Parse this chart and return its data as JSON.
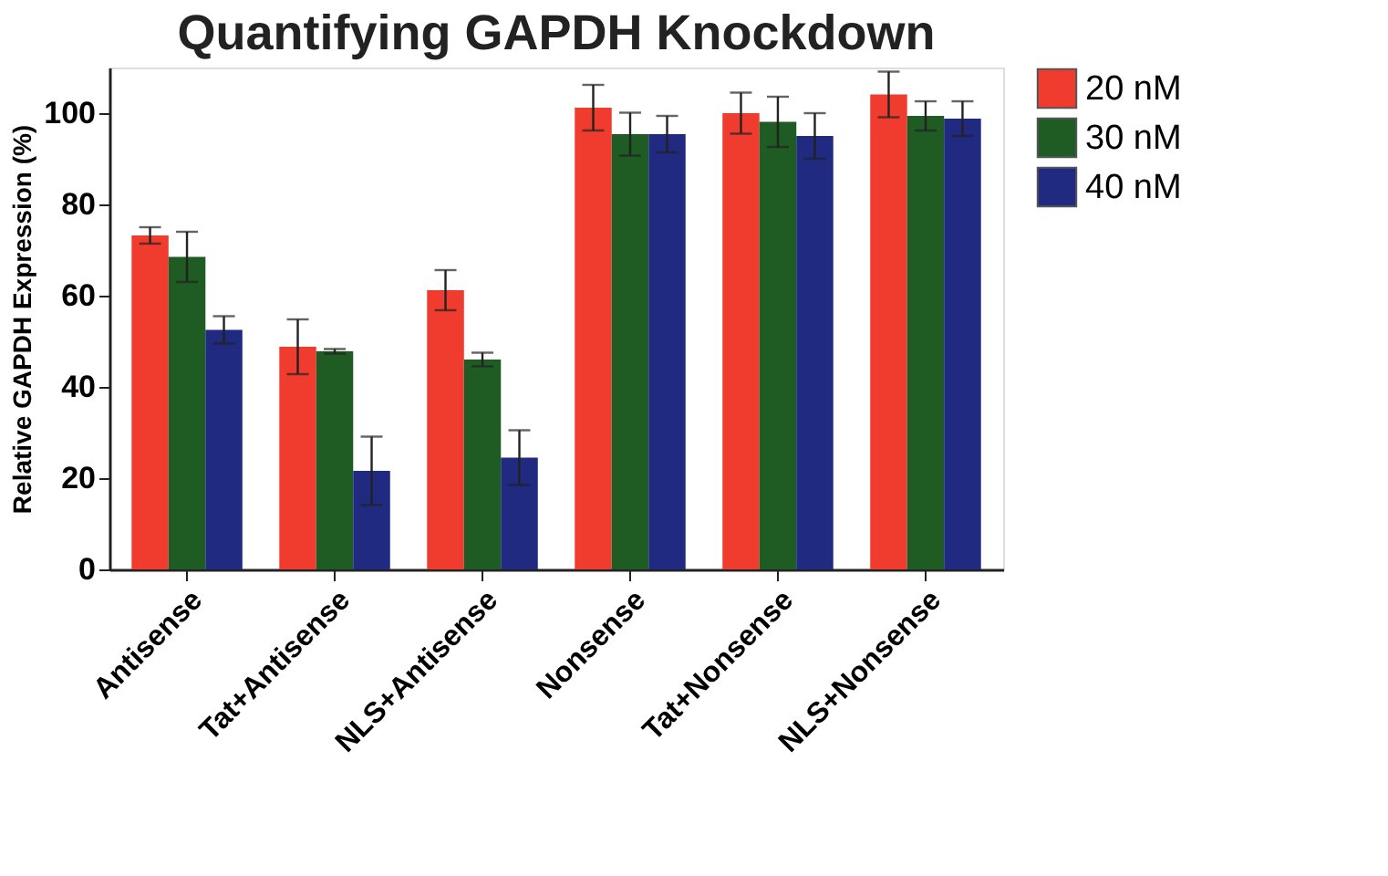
{
  "chart_data": {
    "type": "bar",
    "title": "Quantifying GAPDH Knockdown",
    "ylabel": "Relative GAPDH Expression (%)",
    "categories": [
      "Antisense",
      "Tat+Antisense",
      "NLS+Antisense",
      "Nonsense",
      "Tat+Nonsense",
      "NLS+Nonsense"
    ],
    "series": [
      {
        "name": "20 nM",
        "color": "#f03c2e",
        "values": [
          73.2,
          48.8,
          61.2,
          101.2,
          100,
          104.1
        ],
        "errors": [
          1.8,
          6,
          4.4,
          5,
          4.5,
          5
        ]
      },
      {
        "name": "30 nM",
        "color": "#1e5c24",
        "values": [
          68.5,
          47.8,
          46,
          95.4,
          98.1,
          99.4
        ],
        "errors": [
          5.5,
          0.5,
          1.5,
          4.7,
          5.5,
          3.2
        ]
      },
      {
        "name": "40 nM",
        "color": "#1f2a80",
        "values": [
          52.5,
          21.6,
          24.5,
          95.4,
          95,
          98.8
        ],
        "errors": [
          3,
          7.5,
          6,
          4,
          5,
          3.8
        ]
      }
    ],
    "ylim": [
      0,
      110
    ],
    "yticks": [
      0,
      20,
      40,
      60,
      80,
      100
    ],
    "grid": false,
    "legend": "right"
  }
}
